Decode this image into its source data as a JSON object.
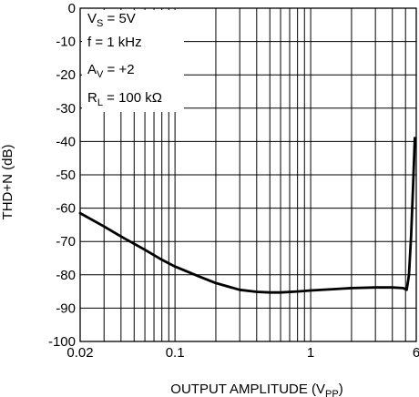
{
  "chart_data": {
    "type": "line",
    "xlabel": "OUTPUT AMPLITUDE (V",
    "xlabel_sub": "PP",
    "xlabel_close": ")",
    "ylabel": "THD+N (dB)",
    "x_scale": "log",
    "xlim": [
      0.02,
      6
    ],
    "ylim": [
      -100,
      0
    ],
    "x_ticks": [
      {
        "value": 0.02,
        "label": "0.02"
      },
      {
        "value": 0.1,
        "label": "0.1"
      },
      {
        "value": 1,
        "label": "1"
      },
      {
        "value": 6,
        "label": "6"
      }
    ],
    "y_ticks": [
      {
        "value": 0,
        "label": "0"
      },
      {
        "value": -10,
        "label": "-10"
      },
      {
        "value": -20,
        "label": "-20"
      },
      {
        "value": -30,
        "label": "-30"
      },
      {
        "value": -40,
        "label": "-40"
      },
      {
        "value": -50,
        "label": "-50"
      },
      {
        "value": -60,
        "label": "-60"
      },
      {
        "value": -70,
        "label": "-70"
      },
      {
        "value": -80,
        "label": "-80"
      },
      {
        "value": -90,
        "label": "-90"
      },
      {
        "value": -100,
        "label": "-100"
      }
    ],
    "grid": true,
    "annotations": [
      {
        "main": "V",
        "sub": "S",
        "rest": " = 5V"
      },
      {
        "main": "f = 1 kHz",
        "sub": "",
        "rest": ""
      },
      {
        "main": "A",
        "sub": "V",
        "rest": " = +2"
      },
      {
        "main": "R",
        "sub": "L",
        "rest": " = 100 kΩ"
      }
    ],
    "series": [
      {
        "x": [
          0.02,
          0.03,
          0.04,
          0.06,
          0.08,
          0.1,
          0.15,
          0.2,
          0.3,
          0.4,
          0.5,
          0.6,
          0.8,
          1,
          1.5,
          2,
          3,
          4,
          4.8,
          5.1,
          5.3,
          5.5,
          5.7,
          5.85
        ],
        "y": [
          -61.5,
          -65.5,
          -68.5,
          -72.5,
          -75.5,
          -77.5,
          -80.5,
          -82.5,
          -84.5,
          -85.1,
          -85.3,
          -85.3,
          -85.0,
          -84.7,
          -84.3,
          -84.0,
          -83.8,
          -83.8,
          -84.0,
          -84.5,
          -80,
          -68,
          -52,
          -39
        ]
      }
    ]
  }
}
